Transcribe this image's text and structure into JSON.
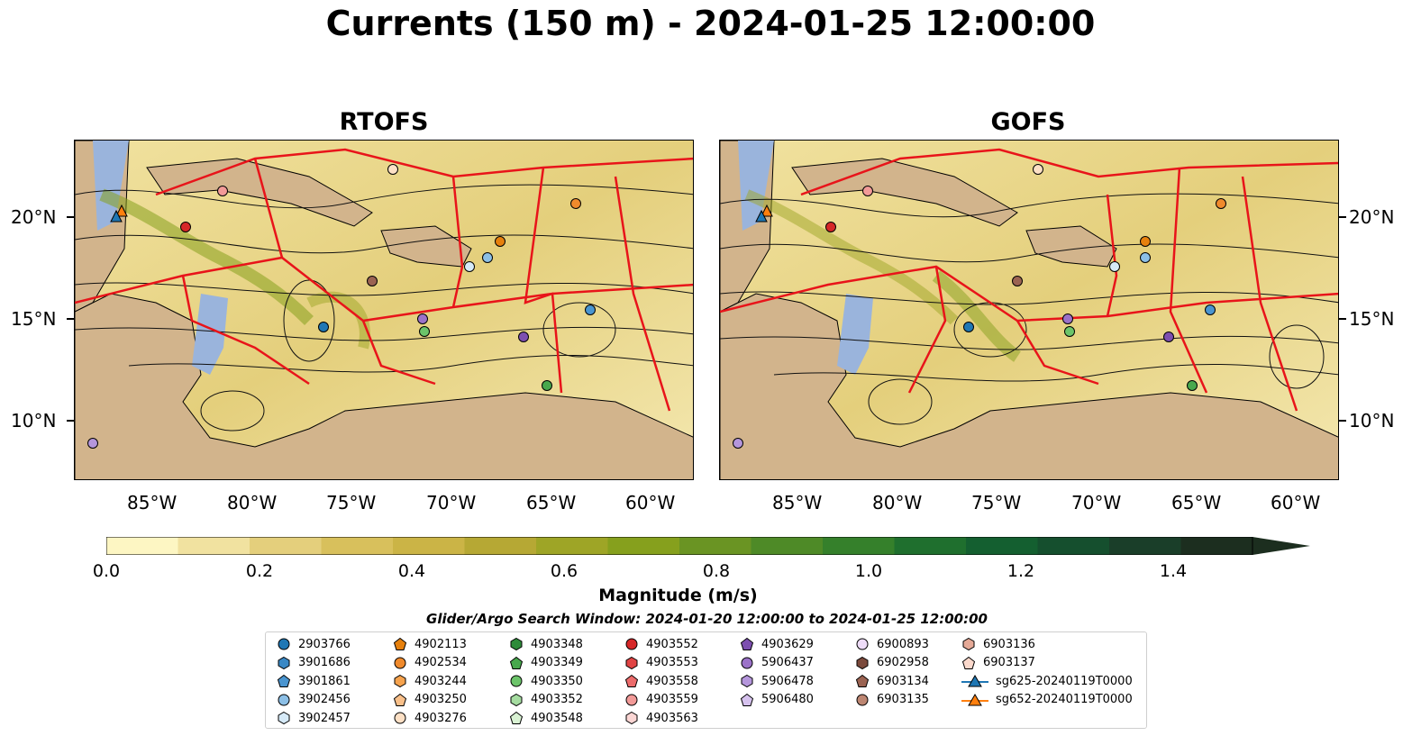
{
  "title": "Currents (150 m) - 2024-01-25 12:00:00",
  "panels": {
    "left": {
      "name": "RTOFS"
    },
    "right": {
      "name": "GOFS"
    }
  },
  "lon_ticks": [
    "85°W",
    "80°W",
    "75°W",
    "70°W",
    "65°W",
    "60°W"
  ],
  "lat_ticks": [
    "20°N",
    "15°N",
    "10°N"
  ],
  "colorbar": {
    "label": "Magnitude (m/s)",
    "ticks": [
      "0.0",
      "0.2",
      "0.4",
      "0.6",
      "0.8",
      "1.0",
      "1.2",
      "1.4"
    ],
    "range": [
      0,
      1.5
    ],
    "colors": [
      "#fdf6c3",
      "#f1e2a0",
      "#e4cf7c",
      "#d8c05c",
      "#cbb446",
      "#b6a834",
      "#9ea526",
      "#86a01d",
      "#6a9423",
      "#4e8a27",
      "#35802b",
      "#1f6f2e",
      "#145f30",
      "#154f2e",
      "#1a3e29",
      "#1c2e1f"
    ]
  },
  "search_window": "Glider/Argo Search Window: 2024-01-20 12:00:00 to 2024-01-25 12:00:00",
  "legend": {
    "columns": [
      [
        {
          "label": "2903766",
          "shape": "circle",
          "color": "#1f77b4"
        },
        {
          "label": "3901686",
          "shape": "hexagon",
          "color": "#3a88c4"
        },
        {
          "label": "3901861",
          "shape": "pentagon",
          "color": "#4a95d0"
        },
        {
          "label": "3902456",
          "shape": "circle",
          "color": "#8cbfe6"
        },
        {
          "label": "3902457",
          "shape": "hexagon",
          "color": "#d6eaf8"
        }
      ],
      [
        {
          "label": "4902113",
          "shape": "pentagon",
          "color": "#e6800d"
        },
        {
          "label": "4902534",
          "shape": "circle",
          "color": "#f08a2c"
        },
        {
          "label": "4903244",
          "shape": "hexagon",
          "color": "#f6a34e"
        },
        {
          "label": "4903250",
          "shape": "pentagon",
          "color": "#f9c08a"
        },
        {
          "label": "4903276",
          "shape": "circle",
          "color": "#fde0c5"
        }
      ],
      [
        {
          "label": "4903348",
          "shape": "hexagon",
          "color": "#2e8b3a"
        },
        {
          "label": "4903349",
          "shape": "pentagon",
          "color": "#47a84d"
        },
        {
          "label": "4903350",
          "shape": "circle",
          "color": "#6cc46a"
        },
        {
          "label": "4903352",
          "shape": "hexagon",
          "color": "#a5dca0"
        },
        {
          "label": "4903548",
          "shape": "pentagon",
          "color": "#d9f2d3"
        }
      ],
      [
        {
          "label": "4903552",
          "shape": "circle",
          "color": "#d62728"
        },
        {
          "label": "4903553",
          "shape": "hexagon",
          "color": "#e04444"
        },
        {
          "label": "4903558",
          "shape": "pentagon",
          "color": "#ec6b6b"
        },
        {
          "label": "4903559",
          "shape": "circle",
          "color": "#f29a98"
        },
        {
          "label": "4903563",
          "shape": "hexagon",
          "color": "#fbd6d4"
        }
      ],
      [
        {
          "label": "4903629",
          "shape": "pentagon",
          "color": "#7d4fb0"
        },
        {
          "label": "5906437",
          "shape": "circle",
          "color": "#9b72c8"
        },
        {
          "label": "5906478",
          "shape": "hexagon",
          "color": "#b596dc"
        },
        {
          "label": "5906480",
          "shape": "pentagon",
          "color": "#d6c2ee"
        }
      ],
      [
        {
          "label": "6900893",
          "shape": "circle",
          "color": "#eedcf8"
        },
        {
          "label": "6902958",
          "shape": "hexagon",
          "color": "#7b4a3c"
        },
        {
          "label": "6903134",
          "shape": "pentagon",
          "color": "#9b6352"
        },
        {
          "label": "6903135",
          "shape": "circle",
          "color": "#bd8672"
        }
      ],
      [
        {
          "label": "6903136",
          "shape": "hexagon",
          "color": "#e5a997"
        },
        {
          "label": "6903137",
          "shape": "pentagon",
          "color": "#fbd9cc"
        },
        {
          "label": "sg625-20240119T0000",
          "shape": "triangle-line",
          "color": "#1f77b4"
        },
        {
          "label": "sg652-20240119T0000",
          "shape": "triangle-line",
          "color": "#ff7f0e"
        }
      ]
    ]
  },
  "colors": {
    "land": "#d2b48c",
    "water_shallow": "#9ab4dc",
    "boundary": "#e8141a"
  }
}
